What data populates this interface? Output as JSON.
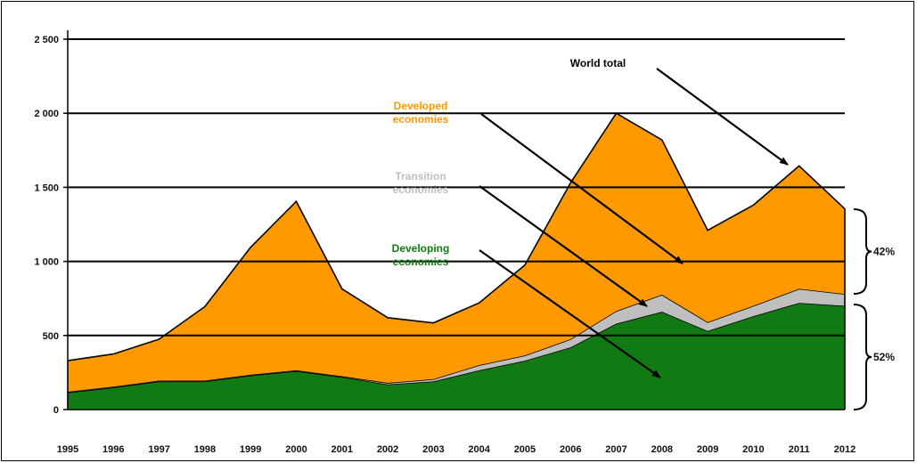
{
  "chart_data": {
    "type": "area",
    "stacked": true,
    "title": "",
    "xlabel": "",
    "ylabel": "",
    "x": [
      "1995",
      "1996",
      "1997",
      "1998",
      "1999",
      "2000",
      "2001",
      "2002",
      "2003",
      "2004",
      "2005",
      "2006",
      "2007",
      "2008",
      "2009",
      "2010",
      "2011",
      "2012"
    ],
    "ylim": [
      0,
      2500
    ],
    "yticks": [
      0,
      500,
      1000,
      1500,
      2000,
      2500
    ],
    "ytick_labels": [
      "0",
      "500",
      "1 000",
      "1 500",
      "2 000",
      "2 500"
    ],
    "grid": true,
    "series": [
      {
        "name": "Developing economies",
        "color": "#127a12",
        "values": [
          115,
          150,
          190,
          190,
          230,
          260,
          220,
          170,
          190,
          265,
          330,
          420,
          580,
          660,
          530,
          630,
          720,
          700
        ]
      },
      {
        "name": "Transition economies",
        "color": "#bfbfbf",
        "values": [
          5,
          5,
          5,
          5,
          5,
          5,
          5,
          10,
          15,
          35,
          35,
          55,
          85,
          115,
          60,
          70,
          95,
          80
        ]
      },
      {
        "name": "Developed economies",
        "color": "#ff9900",
        "values": [
          210,
          220,
          280,
          500,
          860,
          1140,
          590,
          440,
          380,
          420,
          610,
          1055,
          1335,
          1045,
          620,
          680,
          830,
          575
        ]
      }
    ],
    "world_total": [
      330,
      375,
      475,
      695,
      1095,
      1405,
      815,
      620,
      585,
      720,
      975,
      1530,
      2000,
      1820,
      1210,
      1380,
      1645,
      1355
    ],
    "annotations": [
      {
        "text": "World total"
      },
      {
        "text": "Developed economies"
      },
      {
        "text": "Transition economies"
      },
      {
        "text": "Developing economies"
      }
    ],
    "shares": [
      {
        "text": "42%"
      },
      {
        "text": "52%"
      }
    ]
  }
}
